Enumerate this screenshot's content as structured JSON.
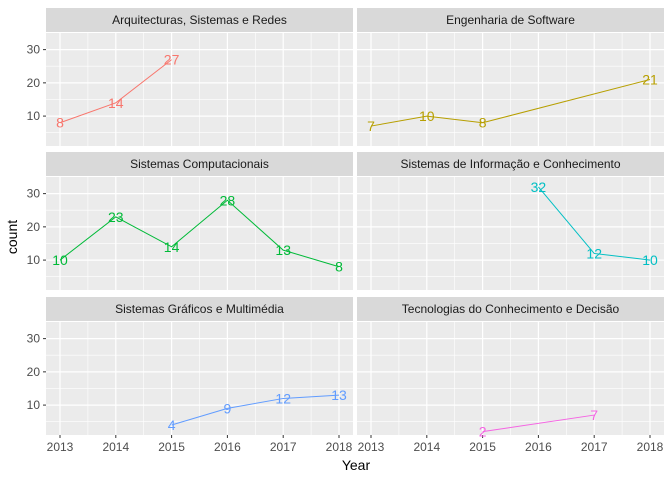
{
  "chart_data": {
    "type": "line",
    "xlabel": "Year",
    "ylabel": "count",
    "xlim": [
      2013,
      2018
    ],
    "ylim": [
      1,
      35
    ],
    "x_ticks": [
      2013,
      2014,
      2015,
      2016,
      2017,
      2018
    ],
    "y_ticks": [
      10,
      20,
      30
    ],
    "grid": true,
    "legend": "none",
    "facet_layout": "3 rows x 2 columns",
    "series": [
      {
        "name": "Arquitecturas, Sistemas e Redes",
        "color": "#F8766D",
        "x": [
          2013,
          2014,
          2015
        ],
        "values": [
          8,
          14,
          27
        ]
      },
      {
        "name": "Engenharia de Software",
        "color": "#B79F00",
        "x": [
          2013,
          2014,
          2015,
          2018
        ],
        "values": [
          7,
          10,
          8,
          21
        ]
      },
      {
        "name": "Sistemas Computacionais",
        "color": "#00BA38",
        "x": [
          2013,
          2014,
          2015,
          2016,
          2017,
          2018
        ],
        "values": [
          10,
          23,
          14,
          28,
          13,
          8
        ]
      },
      {
        "name": "Sistemas de Informação e Conhecimento",
        "color": "#00BFC4",
        "x": [
          2016,
          2017,
          2018
        ],
        "values": [
          32,
          12,
          10
        ]
      },
      {
        "name": "Sistemas Gráficos e Multimédia",
        "color": "#619CFF",
        "x": [
          2015,
          2016,
          2017,
          2018
        ],
        "values": [
          4,
          9,
          12,
          13
        ]
      },
      {
        "name": "Tecnologias do Conhecimento e Decisão",
        "color": "#F564E3",
        "x": [
          2015,
          2017
        ],
        "values": [
          2,
          7
        ]
      }
    ]
  }
}
